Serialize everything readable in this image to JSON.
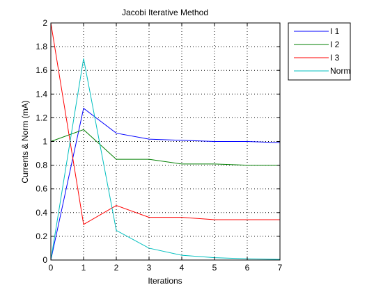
{
  "chart_data": {
    "type": "line",
    "title": "Jacobi Iterative Method",
    "xlabel": "Iterations",
    "ylabel": "Currents & Norm (mA)",
    "xlim": [
      0,
      7
    ],
    "ylim": [
      0,
      2
    ],
    "xticks": [
      0,
      1,
      2,
      3,
      4,
      5,
      6,
      7
    ],
    "yticks": [
      0,
      0.2,
      0.4,
      0.6,
      0.8,
      1,
      1.2,
      1.4,
      1.6,
      1.8,
      2
    ],
    "grid": true,
    "legend_position": "outside-top-right",
    "x": [
      0,
      1,
      2,
      3,
      4,
      5,
      6,
      7
    ],
    "series": [
      {
        "name": "I 1",
        "color": "#0000ff",
        "values": [
          0,
          1.28,
          1.07,
          1.02,
          1.01,
          1.0,
          1.0,
          0.99
        ]
      },
      {
        "name": "I 2",
        "color": "#007f00",
        "values": [
          1.0,
          1.1,
          0.85,
          0.85,
          0.81,
          0.81,
          0.8,
          0.8
        ]
      },
      {
        "name": "I 3",
        "color": "#ff0000",
        "values": [
          2.0,
          0.3,
          0.46,
          0.36,
          0.36,
          0.34,
          0.34,
          0.34
        ]
      },
      {
        "name": "Norm",
        "color": "#00bfbf",
        "values": [
          0,
          1.7,
          0.25,
          0.1,
          0.04,
          0.02,
          0.01,
          0.005
        ]
      }
    ]
  }
}
